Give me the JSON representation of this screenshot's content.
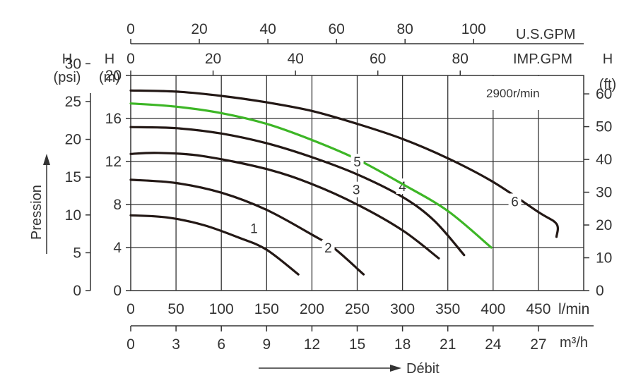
{
  "chart_data": {
    "type": "line",
    "title": "",
    "speed_label": "2900r/min",
    "x_axis": {
      "label": "l/min",
      "lim": [
        0,
        500
      ],
      "ticks": [
        0,
        50,
        100,
        150,
        200,
        250,
        300,
        350,
        400,
        450
      ]
    },
    "y_axis": {
      "label": "H (m)",
      "lim": [
        0,
        20
      ],
      "ticks": [
        0,
        4,
        8,
        12,
        16,
        20
      ]
    },
    "psi_axis": {
      "unit": "(psi)",
      "head": "H",
      "ticks": [
        "0",
        "5",
        "10",
        "15",
        "20",
        "25",
        "30"
      ]
    },
    "m_axis": {
      "unit": "(m)",
      "head": "H"
    },
    "ft_axis": {
      "unit": "(ft)",
      "head": "H",
      "ticks": [
        "0",
        "10",
        "20",
        "30",
        "40",
        "50",
        "60"
      ]
    },
    "usgpm_axis": {
      "label": "U.S.GPM",
      "ticks": [
        "0",
        "20",
        "40",
        "60",
        "80",
        "100"
      ]
    },
    "impgpm_axis": {
      "label": "IMP.GPM",
      "ticks": [
        "0",
        "20",
        "40",
        "60",
        "80"
      ]
    },
    "m3h_axis": {
      "label": "m³/h",
      "ticks": [
        "0",
        "3",
        "6",
        "9",
        "12",
        "15",
        "18",
        "21",
        "24",
        "27"
      ]
    },
    "pressure_label": "Pression",
    "flow_label": "Débit",
    "grid": true,
    "series": [
      {
        "name": "1",
        "color": "#231815",
        "x": [
          0,
          40,
          80,
          120,
          150,
          185
        ],
        "y": [
          7,
          6.8,
          6.1,
          4.9,
          3.8,
          1.5
        ]
      },
      {
        "name": "2",
        "color": "#231815",
        "x": [
          0,
          50,
          100,
          150,
          200,
          225,
          257
        ],
        "y": [
          10.3,
          10.0,
          9.1,
          7.5,
          5.2,
          3.9,
          1.5
        ]
      },
      {
        "name": "3",
        "color": "#231815",
        "x": [
          0,
          30,
          80,
          150,
          200,
          250,
          300,
          340
        ],
        "y": [
          12.7,
          12.8,
          12.5,
          11.3,
          9.9,
          8.0,
          5.6,
          3.0
        ]
      },
      {
        "name": "4",
        "color": "#231815",
        "x": [
          0,
          50,
          100,
          150,
          200,
          250,
          300,
          335,
          368
        ],
        "y": [
          15.2,
          15.1,
          14.6,
          13.7,
          12.4,
          10.8,
          8.7,
          6.5,
          3.3
        ]
      },
      {
        "name": "5",
        "color": "#3db626",
        "x": [
          0,
          50,
          100,
          150,
          200,
          250,
          300,
          350,
          398
        ],
        "y": [
          17.4,
          17.1,
          16.5,
          15.5,
          14.0,
          12.2,
          9.9,
          7.4,
          4.0
        ]
      },
      {
        "name": "6",
        "color": "#231815",
        "x": [
          0,
          50,
          100,
          150,
          200,
          250,
          300,
          350,
          400,
          450,
          470,
          470
        ],
        "y": [
          18.6,
          18.5,
          18.1,
          17.5,
          16.7,
          15.5,
          14.1,
          12.3,
          10.1,
          7.3,
          6.2,
          5.0
        ]
      }
    ]
  }
}
